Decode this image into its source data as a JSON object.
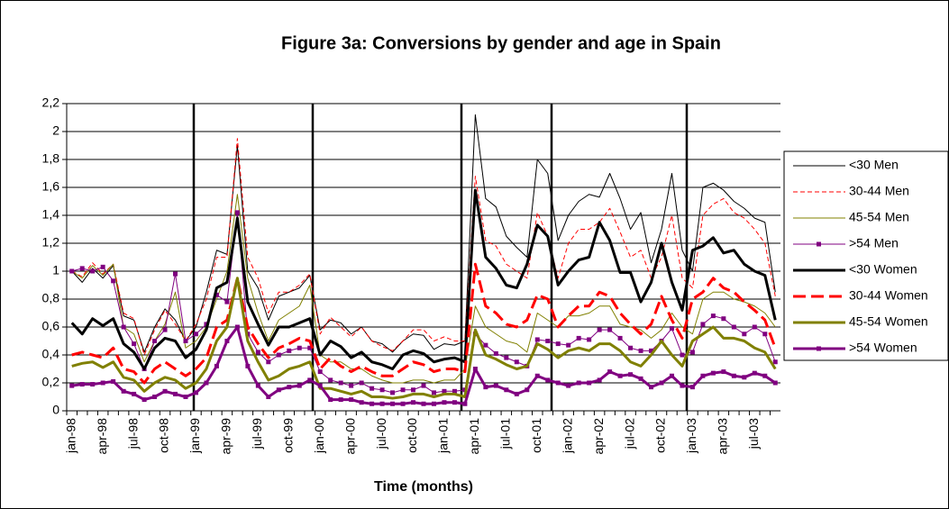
{
  "chart_data": {
    "type": "line",
    "title": "Figure 3a: Conversions by gender and age in Spain",
    "x_label": "Time (months)",
    "categories": [
      "jan-98",
      null,
      null,
      "apr-98",
      null,
      null,
      "jul-98",
      null,
      null,
      "oct-98",
      null,
      null,
      "jan-99",
      null,
      null,
      "apr-99",
      null,
      null,
      "jul-99",
      null,
      null,
      "oct-99",
      null,
      null,
      "jan-00",
      null,
      null,
      "apr-00",
      null,
      null,
      "jul-00",
      null,
      null,
      "oct-00",
      null,
      null,
      "jan-01",
      null,
      null,
      "apr-01",
      null,
      null,
      "jul-01",
      null,
      null,
      "oct-01",
      null,
      null,
      "jan-02",
      null,
      null,
      "apr-02",
      null,
      null,
      "jul-02",
      null,
      null,
      "oct-02",
      null,
      null,
      "jan-03",
      null,
      null,
      "apr-03",
      null,
      null,
      "jul-03",
      null,
      null
    ],
    "ylim": [
      0,
      2.2
    ],
    "yticks": [
      0,
      {
        "value": 0.2,
        "label": "0,2"
      },
      {
        "value": 0.4,
        "label": "0,4"
      },
      {
        "value": 0.6,
        "label": "0,6"
      },
      {
        "value": 0.8,
        "label": "0,8"
      },
      1,
      {
        "value": 1.2,
        "label": "1,2"
      },
      {
        "value": 1.4,
        "label": "1,4"
      },
      {
        "value": 1.6,
        "label": "1,6"
      },
      {
        "value": 1.8,
        "label": "1,8"
      },
      2,
      {
        "value": 2.2,
        "label": "2,2"
      }
    ],
    "grid": true,
    "legend": "right",
    "series": [
      {
        "name": "<30 Men",
        "color": "#000000",
        "width": 1,
        "dash": false,
        "marker": "none",
        "values": [
          1.0,
          0.92,
          1.02,
          0.95,
          1.04,
          0.68,
          0.65,
          0.42,
          0.6,
          0.73,
          0.65,
          0.5,
          0.6,
          0.85,
          1.15,
          1.12,
          1.9,
          1.0,
          0.88,
          0.65,
          0.82,
          0.85,
          0.88,
          0.97,
          0.58,
          0.65,
          0.63,
          0.55,
          0.6,
          0.5,
          0.48,
          0.42,
          0.5,
          0.55,
          0.54,
          0.44,
          0.48,
          0.47,
          0.5,
          2.12,
          1.52,
          1.46,
          1.25,
          1.17,
          1.1,
          1.8,
          1.7,
          1.22,
          1.4,
          1.5,
          1.55,
          1.53,
          1.7,
          1.52,
          1.3,
          1.42,
          1.06,
          1.3,
          1.7,
          1.15,
          1.0,
          1.6,
          1.63,
          1.58,
          1.5,
          1.45,
          1.38,
          1.35,
          0.85
        ]
      },
      {
        "name": "30-44 Men",
        "color": "#ff0000",
        "width": 1,
        "dash": true,
        "marker": "none",
        "values": [
          1.0,
          0.96,
          1.06,
          0.98,
          1.05,
          0.7,
          0.66,
          0.4,
          0.58,
          0.72,
          0.62,
          0.5,
          0.62,
          0.8,
          1.1,
          1.1,
          1.95,
          1.1,
          0.95,
          0.7,
          0.85,
          0.85,
          0.9,
          0.98,
          0.55,
          0.67,
          0.6,
          0.53,
          0.6,
          0.5,
          0.46,
          0.43,
          0.5,
          0.58,
          0.58,
          0.5,
          0.53,
          0.5,
          0.5,
          1.68,
          1.22,
          1.18,
          1.05,
          1.0,
          0.95,
          1.42,
          1.25,
          0.95,
          1.2,
          1.3,
          1.3,
          1.35,
          1.45,
          1.28,
          1.1,
          1.15,
          0.95,
          1.1,
          1.4,
          0.95,
          0.88,
          1.4,
          1.48,
          1.52,
          1.42,
          1.38,
          1.3,
          1.2,
          0.82
        ]
      },
      {
        "name": "45-54 Men",
        "color": "#808000",
        "width": 1,
        "dash": false,
        "marker": "none",
        "values": [
          1.0,
          0.95,
          1.04,
          0.97,
          1.05,
          0.6,
          0.55,
          0.35,
          0.5,
          0.62,
          0.85,
          0.45,
          0.5,
          0.6,
          0.8,
          1.0,
          1.55,
          0.95,
          0.7,
          0.5,
          0.65,
          0.7,
          0.75,
          0.9,
          0.4,
          0.35,
          0.35,
          0.3,
          0.3,
          0.25,
          0.22,
          0.2,
          0.2,
          0.22,
          0.22,
          0.2,
          0.22,
          0.22,
          0.3,
          0.75,
          0.6,
          0.55,
          0.5,
          0.48,
          0.42,
          0.7,
          0.65,
          0.6,
          0.68,
          0.68,
          0.7,
          0.75,
          0.75,
          0.62,
          0.6,
          0.58,
          0.52,
          0.58,
          0.7,
          0.6,
          0.55,
          0.8,
          0.85,
          0.85,
          0.8,
          0.78,
          0.75,
          0.7,
          0.6
        ]
      },
      {
        "name": ">54 Men",
        "color": "#800080",
        "width": 1,
        "dash": false,
        "marker": "square",
        "values": [
          1.0,
          1.02,
          1.0,
          1.03,
          0.93,
          0.6,
          0.48,
          0.3,
          0.5,
          0.58,
          0.98,
          0.5,
          0.55,
          0.62,
          0.83,
          0.78,
          1.42,
          0.55,
          0.42,
          0.35,
          0.4,
          0.43,
          0.45,
          0.45,
          0.28,
          0.22,
          0.2,
          0.18,
          0.2,
          0.16,
          0.15,
          0.13,
          0.15,
          0.15,
          0.18,
          0.13,
          0.14,
          0.14,
          0.15,
          0.55,
          0.47,
          0.41,
          0.38,
          0.35,
          0.32,
          0.51,
          0.5,
          0.48,
          0.47,
          0.52,
          0.51,
          0.58,
          0.58,
          0.52,
          0.45,
          0.43,
          0.43,
          0.5,
          0.59,
          0.4,
          0.42,
          0.62,
          0.68,
          0.66,
          0.6,
          0.55,
          0.6,
          0.55,
          0.35
        ]
      },
      {
        "name": "<30 Women",
        "color": "#000000",
        "width": 3,
        "dash": false,
        "marker": "none",
        "values": [
          0.63,
          0.55,
          0.66,
          0.61,
          0.66,
          0.48,
          0.42,
          0.3,
          0.45,
          0.52,
          0.5,
          0.38,
          0.44,
          0.58,
          0.88,
          0.92,
          1.38,
          0.78,
          0.62,
          0.47,
          0.6,
          0.6,
          0.63,
          0.66,
          0.4,
          0.5,
          0.46,
          0.38,
          0.42,
          0.35,
          0.33,
          0.3,
          0.4,
          0.43,
          0.41,
          0.35,
          0.37,
          0.38,
          0.35,
          1.58,
          1.1,
          1.02,
          0.9,
          0.88,
          1.05,
          1.33,
          1.25,
          0.9,
          1.0,
          1.08,
          1.1,
          1.35,
          1.22,
          0.99,
          0.99,
          0.78,
          0.92,
          1.2,
          0.92,
          0.72,
          1.15,
          1.18,
          1.24,
          1.13,
          1.15,
          1.05,
          1.0,
          0.97,
          0.65
        ]
      },
      {
        "name": "30-44 Women",
        "color": "#ff0000",
        "width": 3,
        "dash": true,
        "marker": "none",
        "values": [
          0.4,
          0.42,
          0.4,
          0.38,
          0.45,
          0.3,
          0.28,
          0.2,
          0.3,
          0.35,
          0.3,
          0.25,
          0.3,
          0.38,
          0.6,
          0.65,
          0.95,
          0.6,
          0.48,
          0.38,
          0.45,
          0.48,
          0.52,
          0.5,
          0.3,
          0.38,
          0.32,
          0.28,
          0.32,
          0.28,
          0.25,
          0.25,
          0.3,
          0.35,
          0.33,
          0.28,
          0.3,
          0.3,
          0.28,
          1.05,
          0.75,
          0.7,
          0.62,
          0.6,
          0.65,
          0.83,
          0.8,
          0.6,
          0.68,
          0.75,
          0.75,
          0.85,
          0.82,
          0.7,
          0.62,
          0.55,
          0.62,
          0.82,
          0.65,
          0.52,
          0.8,
          0.85,
          0.95,
          0.88,
          0.85,
          0.78,
          0.72,
          0.65,
          0.45
        ]
      },
      {
        "name": "45-54 Women",
        "color": "#808000",
        "width": 3,
        "dash": false,
        "marker": "none",
        "values": [
          0.32,
          0.34,
          0.35,
          0.31,
          0.35,
          0.24,
          0.22,
          0.14,
          0.2,
          0.24,
          0.22,
          0.16,
          0.2,
          0.3,
          0.5,
          0.6,
          0.95,
          0.5,
          0.35,
          0.22,
          0.25,
          0.3,
          0.32,
          0.35,
          0.16,
          0.16,
          0.14,
          0.12,
          0.14,
          0.1,
          0.1,
          0.09,
          0.1,
          0.12,
          0.12,
          0.1,
          0.12,
          0.12,
          0.1,
          0.58,
          0.4,
          0.37,
          0.33,
          0.3,
          0.32,
          0.48,
          0.44,
          0.38,
          0.43,
          0.45,
          0.43,
          0.48,
          0.48,
          0.43,
          0.35,
          0.32,
          0.4,
          0.5,
          0.4,
          0.32,
          0.5,
          0.55,
          0.6,
          0.52,
          0.52,
          0.5,
          0.45,
          0.42,
          0.3
        ]
      },
      {
        "name": ">54 Women",
        "color": "#800080",
        "width": 3,
        "dash": false,
        "marker": "square",
        "values": [
          0.18,
          0.19,
          0.19,
          0.2,
          0.21,
          0.14,
          0.12,
          0.08,
          0.1,
          0.14,
          0.12,
          0.1,
          0.13,
          0.2,
          0.32,
          0.5,
          0.6,
          0.32,
          0.18,
          0.1,
          0.15,
          0.17,
          0.18,
          0.22,
          0.18,
          0.08,
          0.08,
          0.08,
          0.06,
          0.05,
          0.05,
          0.05,
          0.05,
          0.06,
          0.05,
          0.05,
          0.06,
          0.06,
          0.05,
          0.3,
          0.17,
          0.18,
          0.15,
          0.12,
          0.15,
          0.25,
          0.22,
          0.2,
          0.18,
          0.2,
          0.2,
          0.22,
          0.28,
          0.25,
          0.26,
          0.23,
          0.17,
          0.2,
          0.25,
          0.18,
          0.17,
          0.25,
          0.27,
          0.28,
          0.25,
          0.24,
          0.27,
          0.25,
          0.2
        ]
      }
    ]
  }
}
